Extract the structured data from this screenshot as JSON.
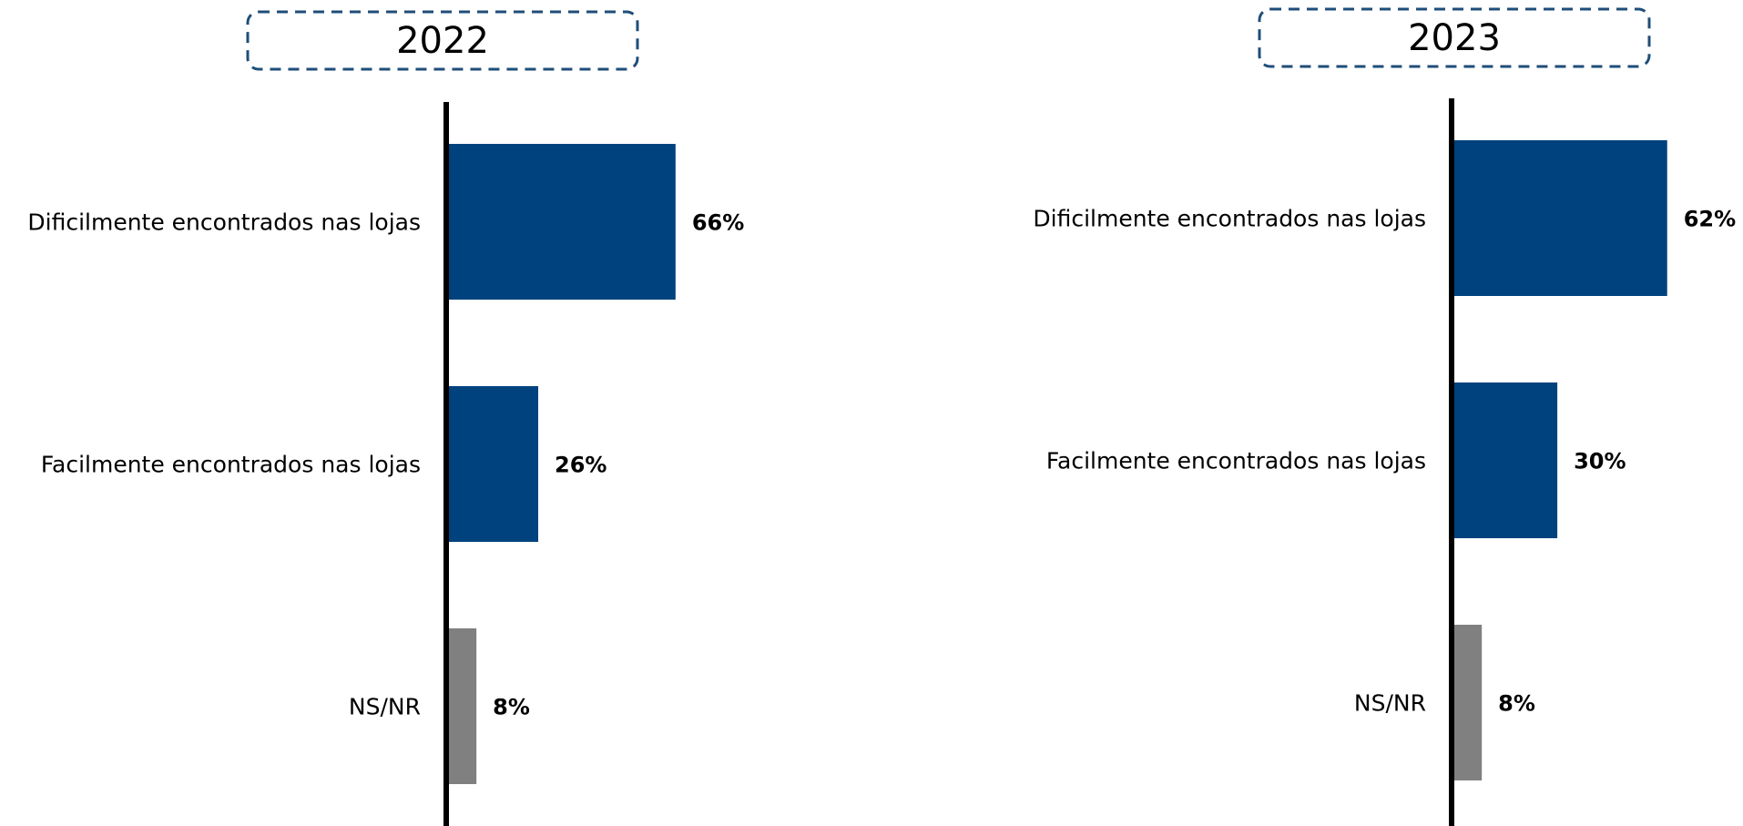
{
  "chart_data": [
    {
      "type": "bar",
      "orientation": "horizontal",
      "title": "2022",
      "categories": [
        "Dificilmente encontrados nas lojas",
        "Facilmente encontrados nas lojas",
        "NS/NR"
      ],
      "values": [
        66,
        26,
        8
      ],
      "value_labels": [
        "66%",
        "26%",
        "8%"
      ],
      "colors": [
        "#00427E",
        "#00427E",
        "#808080"
      ],
      "xlim": [
        0,
        70
      ],
      "grid": false
    },
    {
      "type": "bar",
      "orientation": "horizontal",
      "title": "2023",
      "categories": [
        "Dificilmente encontrados nas lojas",
        "Facilmente encontrados nas lojas",
        "NS/NR"
      ],
      "values": [
        62,
        30,
        8
      ],
      "value_labels": [
        "62%",
        "30%",
        "8%"
      ],
      "colors": [
        "#00427E",
        "#00427E",
        "#808080"
      ],
      "xlim": [
        0,
        70
      ],
      "grid": false
    }
  ],
  "theme": {
    "title_box_border": "#1F4E79",
    "axis_color": "#000000"
  }
}
